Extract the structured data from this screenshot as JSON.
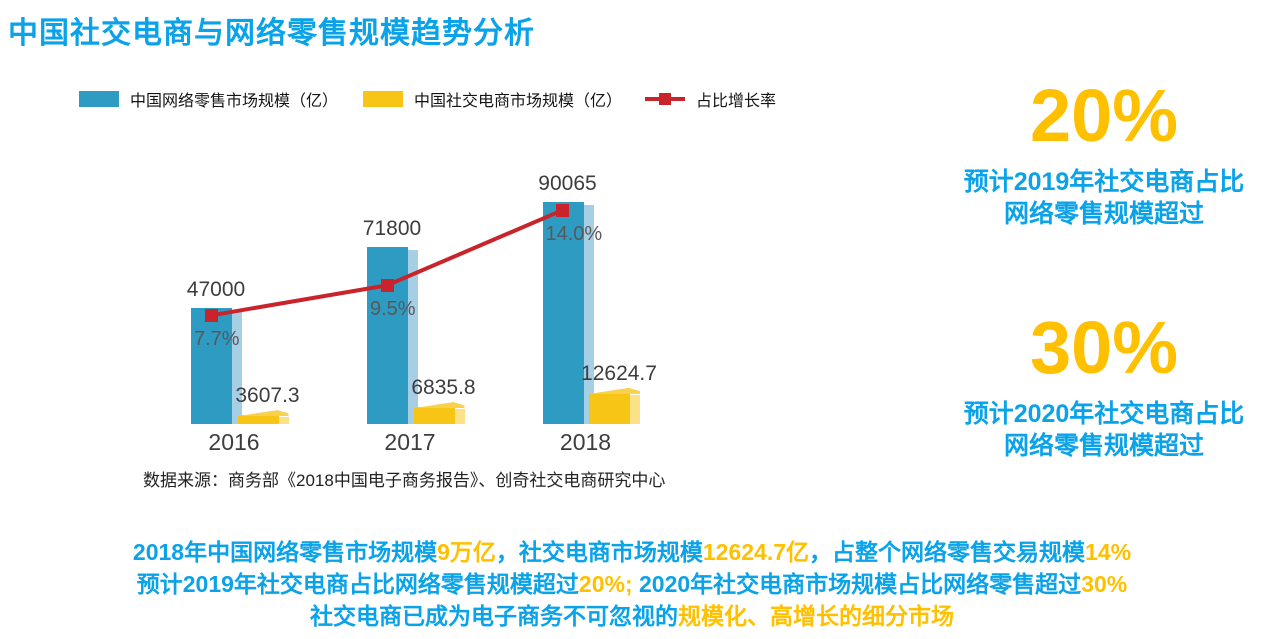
{
  "title": "中国社交电商与网络零售规模趋势分析",
  "colors": {
    "title_blue": "#0aa2e8",
    "accent_yellow": "#ffc000",
    "bar_blue": "#2e9bc3",
    "bar_blue_side": "#a6cfe5",
    "bar_yellow": "#f7c515",
    "bar_yellow_side": "#fbe187",
    "bar_yellow_cap": "#f9d14a",
    "line_red": "#c9242b",
    "label_dark": "#3d3d3f",
    "pct_gray": "#58585b"
  },
  "legend": [
    {
      "label": "中国网络零售市场规模（亿）",
      "swatch": "blue-rect"
    },
    {
      "label": "中国社交电商市场规模（亿）",
      "swatch": "yellow-rect"
    },
    {
      "label": "占比增长率",
      "swatch": "red-line"
    }
  ],
  "chart_data": {
    "type": "bar",
    "title": "中国社交电商与网络零售规模趋势分析",
    "categories": [
      "2016",
      "2017",
      "2018"
    ],
    "series": [
      {
        "name": "中国网络零售市场规模（亿）",
        "type": "bar",
        "axis": "primary",
        "values": [
          47000,
          71800,
          90065
        ],
        "labels": [
          "47000",
          "71800",
          "90065"
        ]
      },
      {
        "name": "中国社交电商市场规模（亿）",
        "type": "bar",
        "axis": "primary",
        "values": [
          3607.3,
          6835.8,
          12624.7
        ],
        "labels": [
          "3607.3",
          "6835.8",
          "12624.7"
        ]
      },
      {
        "name": "占比增长率",
        "type": "line",
        "axis": "secondary-percent",
        "values": [
          7.7,
          9.5,
          14.0
        ],
        "labels": [
          "7.7%",
          "9.5%",
          "14.0%"
        ]
      }
    ],
    "xlabel": "",
    "ylabel": "",
    "ylim": [
      0,
      96000
    ],
    "y2lim_percent": [
      0,
      16
    ],
    "grid": false,
    "axes_visible": false,
    "legend_position": "top-left"
  },
  "highlights": [
    {
      "value": "20%",
      "lines": [
        "预计2019年社交电商占比",
        "网络零售规模超过"
      ]
    },
    {
      "value": "30%",
      "lines": [
        "预计2020年社交电商占比",
        "网络零售规模超过"
      ]
    }
  ],
  "source": "数据来源：商务部《2018中国电子商务报告》、创奇社交电商研究中心",
  "footer": {
    "lines": [
      [
        {
          "t": "2018年中国网络零售市场规模",
          "c": "blue"
        },
        {
          "t": "9万亿",
          "c": "yellow"
        },
        {
          "t": "，社交电商市场规模",
          "c": "blue"
        },
        {
          "t": "12624.7亿",
          "c": "yellow"
        },
        {
          "t": "，占整个网络零售交易规模",
          "c": "blue"
        },
        {
          "t": "14%",
          "c": "yellow"
        }
      ],
      [
        {
          "t": "预计2019年社交电商占比网络零售规模超过",
          "c": "blue"
        },
        {
          "t": "20%;",
          "c": "yellow"
        },
        {
          "t": " 2020年社交电商市场规模占比网络零售超过",
          "c": "blue"
        },
        {
          "t": "30%",
          "c": "yellow"
        }
      ],
      [
        {
          "t": "社交电商已成为电子商务不可忽视的",
          "c": "blue"
        },
        {
          "t": "规模化、高增长的细分市场",
          "c": "yellow"
        }
      ]
    ]
  }
}
